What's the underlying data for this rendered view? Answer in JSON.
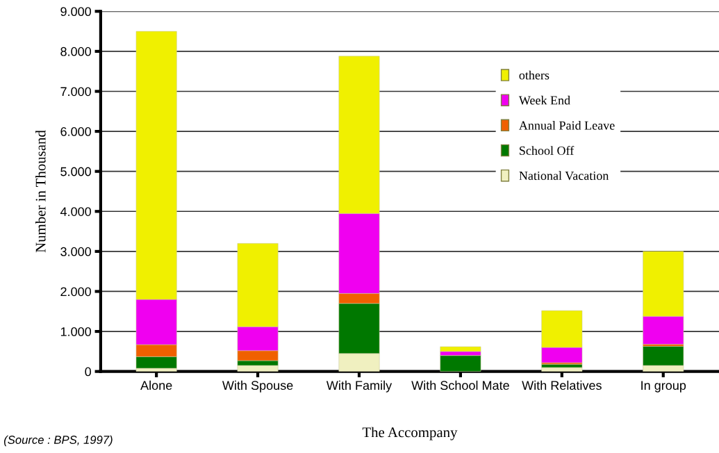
{
  "chart_data": {
    "type": "bar",
    "stacked": true,
    "xlabel": "The Accompany",
    "ylabel": "Number in Thousand",
    "categories": [
      "Alone",
      "With Spouse",
      "With Family",
      "With School Mate",
      "With Relatives",
      "In group"
    ],
    "series": [
      {
        "name": "National Vacation",
        "color": "#f0f0c0",
        "values": [
          80,
          150,
          450,
          0,
          100,
          150
        ]
      },
      {
        "name": "School Off",
        "color": "#007800",
        "values": [
          290,
          120,
          1250,
          400,
          80,
          480
        ]
      },
      {
        "name": "Annual Paid Leave",
        "color": "#f06000",
        "values": [
          300,
          250,
          250,
          0,
          40,
          50
        ]
      },
      {
        "name": "Week End",
        "color": "#f000f0",
        "values": [
          1130,
          600,
          2000,
          100,
          380,
          700
        ]
      },
      {
        "name": "others",
        "color": "#f0f000",
        "values": [
          6700,
          2080,
          3930,
          120,
          920,
          1620
        ]
      }
    ],
    "ylim": [
      0,
      9000
    ],
    "yticks": [
      0,
      {
        "value": 1000,
        "label": "1.000"
      },
      {
        "value": 2000,
        "label": "2.000"
      },
      {
        "value": 3000,
        "label": "3.000"
      },
      {
        "value": 4000,
        "label": "4.000"
      },
      {
        "value": 5000,
        "label": "5.000"
      },
      {
        "value": 6000,
        "label": "6.000"
      },
      {
        "value": 7000,
        "label": "7.000"
      },
      {
        "value": 8000,
        "label": "8.000"
      },
      {
        "value": 9000,
        "label": "9.000"
      }
    ],
    "grid": "y",
    "legend": "top right",
    "annotations": [
      "(Source : BPS, 1997)"
    ]
  }
}
